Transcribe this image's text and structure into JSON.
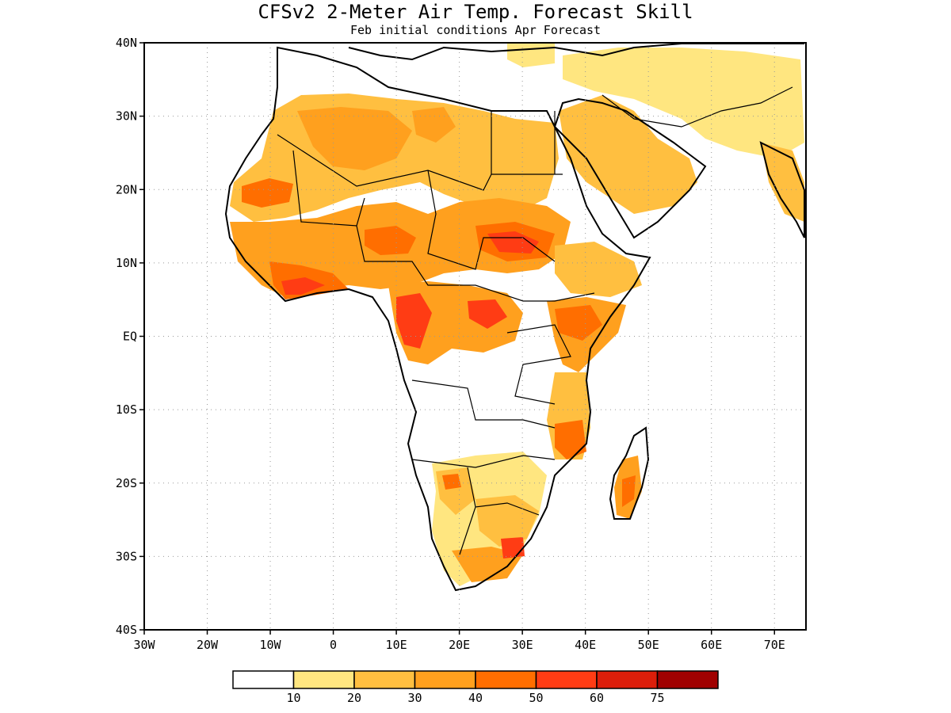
{
  "title": "CFSv2 2-Meter Air Temp. Forecast Skill",
  "subtitle": "Feb initial conditions  Apr Forecast",
  "map": {
    "lon_range": [
      -30,
      75
    ],
    "lat_range": [
      -40,
      40
    ],
    "grid": true,
    "lat_ticks": [
      {
        "value": 40,
        "label": "40N"
      },
      {
        "value": 30,
        "label": "30N"
      },
      {
        "value": 20,
        "label": "20N"
      },
      {
        "value": 10,
        "label": "10N"
      },
      {
        "value": 0,
        "label": "EQ"
      },
      {
        "value": -10,
        "label": "10S"
      },
      {
        "value": -20,
        "label": "20S"
      },
      {
        "value": -30,
        "label": "30S"
      },
      {
        "value": -40,
        "label": "40S"
      }
    ],
    "lon_ticks": [
      {
        "value": -30,
        "label": "30W"
      },
      {
        "value": -20,
        "label": "20W"
      },
      {
        "value": -10,
        "label": "10W"
      },
      {
        "value": 0,
        "label": "0"
      },
      {
        "value": 10,
        "label": "10E"
      },
      {
        "value": 20,
        "label": "20E"
      },
      {
        "value": 30,
        "label": "30E"
      },
      {
        "value": 40,
        "label": "40E"
      },
      {
        "value": 50,
        "label": "50E"
      },
      {
        "value": 60,
        "label": "60E"
      },
      {
        "value": 70,
        "label": "70E"
      }
    ]
  },
  "colorbar": {
    "colors": [
      "#ffffff",
      "#ffe680",
      "#ffbf40",
      "#ffa01e",
      "#ff6e00",
      "#ff3c14",
      "#dc1e0a",
      "#a00000"
    ],
    "labels": [
      "10",
      "20",
      "30",
      "40",
      "50",
      "60",
      "75"
    ]
  }
}
